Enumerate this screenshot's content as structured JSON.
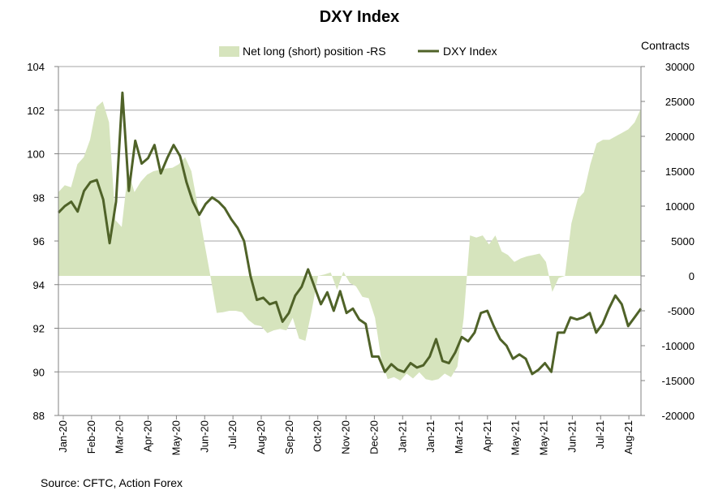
{
  "chart_data": {
    "type": "area+line",
    "title": "DXY Index",
    "source": "Source: CFTC, Action Forex",
    "legend_position": "top-center",
    "grid": true,
    "y_left": {
      "label": "",
      "min": 88,
      "max": 104,
      "ticks": [
        "88",
        "90",
        "92",
        "94",
        "96",
        "98",
        "100",
        "102",
        "104"
      ]
    },
    "y_right": {
      "label": "Contracts",
      "min": -20000,
      "max": 30000,
      "ticks": [
        "-20000",
        "-15000",
        "-10000",
        "-5000",
        "0",
        "5000",
        "10000",
        "15000",
        "20000",
        "25000",
        "30000"
      ]
    },
    "x_labels": [
      "Jan-20",
      "Feb-20",
      "Mar-20",
      "Apr-20",
      "May-20",
      "Jun-20",
      "Jul-20",
      "Aug-20",
      "Sep-20",
      "Oct-20",
      "Nov-20",
      "Dec-20",
      "Jan-21",
      "Jan-21",
      "Mar-21",
      "Apr-21",
      "May-21",
      "May-21",
      "Jun-21",
      "Jul-21",
      "Aug-21"
    ],
    "series": [
      {
        "name": "Net long (short) position -RS",
        "type": "area",
        "axis": "right",
        "color": "#d6e4bd",
        "values": [
          12000,
          13000,
          12700,
          16000,
          17000,
          19500,
          24200,
          25000,
          22000,
          8000,
          7000,
          15000,
          12000,
          13500,
          14500,
          15000,
          15200,
          15400,
          15500,
          16000,
          17000,
          15000,
          10000,
          5000,
          0,
          -5300,
          -5200,
          -5000,
          -5000,
          -5200,
          -6300,
          -7000,
          -7200,
          -8200,
          -7800,
          -7600,
          -7800,
          -6000,
          -9000,
          -9300,
          -5000,
          0,
          200,
          500,
          -2000,
          600,
          -1000,
          -1500,
          -3000,
          -3200,
          -6000,
          -12000,
          -14800,
          -14500,
          -15000,
          -14000,
          -14700,
          -13800,
          -14800,
          -15000,
          -14800,
          -14000,
          -14500,
          -13000,
          -6000,
          5800,
          5500,
          5800,
          4500,
          5800,
          3500,
          3000,
          2000,
          2500,
          2800,
          3000,
          3200,
          2000,
          -2300,
          -300,
          0,
          7500,
          11000,
          12000,
          16000,
          19000,
          19500,
          19500,
          20000,
          20500,
          21000,
          22000,
          24000
        ]
      },
      {
        "name": "DXY Index",
        "type": "line",
        "axis": "left",
        "color": "#4f6228",
        "values": [
          97.3,
          97.6,
          97.8,
          97.35,
          98.3,
          98.7,
          98.8,
          97.9,
          95.9,
          97.8,
          102.8,
          98.3,
          100.6,
          99.55,
          99.8,
          100.4,
          99.1,
          99.8,
          100.4,
          99.9,
          98.7,
          97.8,
          97.2,
          97.7,
          98.0,
          97.8,
          97.5,
          97.0,
          96.6,
          96.0,
          94.4,
          93.3,
          93.4,
          93.1,
          93.2,
          92.3,
          92.7,
          93.5,
          93.9,
          94.7,
          93.9,
          93.1,
          93.65,
          92.8,
          93.7,
          92.7,
          92.9,
          92.4,
          92.2,
          90.7,
          90.7,
          90.0,
          90.35,
          90.1,
          90.0,
          90.4,
          90.2,
          90.3,
          90.7,
          91.5,
          90.5,
          90.4,
          90.9,
          91.6,
          91.4,
          91.8,
          92.7,
          92.8,
          92.1,
          91.5,
          91.2,
          90.6,
          90.8,
          90.6,
          89.9,
          90.1,
          90.4,
          90.0,
          91.8,
          91.8,
          92.5,
          92.4,
          92.5,
          92.7,
          91.8,
          92.2,
          92.9,
          93.5,
          93.1,
          92.1,
          92.5,
          92.9
        ]
      }
    ]
  }
}
